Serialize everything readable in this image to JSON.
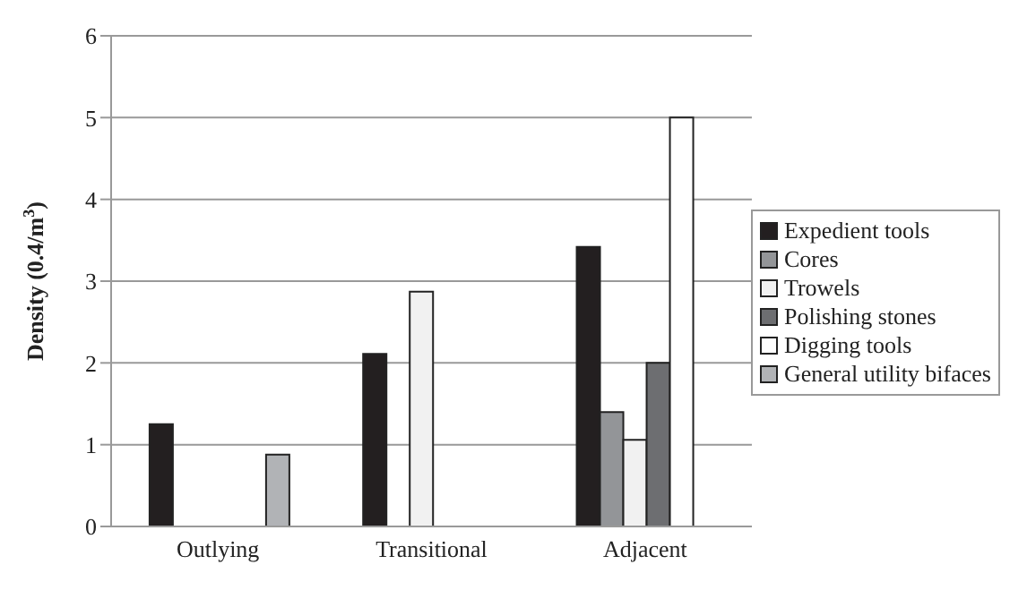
{
  "chart_data": {
    "type": "bar",
    "ylabel": "Density (0.4/m$^{3}$)",
    "categories": [
      "Outlying",
      "Transitional",
      "Adjacent"
    ],
    "series": [
      {
        "name": "Expedient tools",
        "color": "#231f20",
        "values": [
          1.25,
          2.11,
          3.42
        ]
      },
      {
        "name": "Cores",
        "color": "#939598",
        "values": [
          null,
          null,
          1.4
        ]
      },
      {
        "name": "Trowels",
        "color": "#f1f1f1",
        "values": [
          null,
          2.87,
          1.06
        ]
      },
      {
        "name": "Polishing stones",
        "color": "#6d6e71",
        "values": [
          null,
          null,
          2.0
        ]
      },
      {
        "name": "Digging tools",
        "color": "#ffffff",
        "values": [
          null,
          null,
          5.0
        ]
      },
      {
        "name": "General utility bifaces",
        "color": "#b1b3b6",
        "values": [
          0.88,
          null,
          null
        ]
      }
    ],
    "ylim": [
      0,
      6
    ],
    "yticks": [
      0,
      1,
      2,
      3,
      4,
      5,
      6
    ],
    "grid": "y",
    "legend": "right"
  }
}
